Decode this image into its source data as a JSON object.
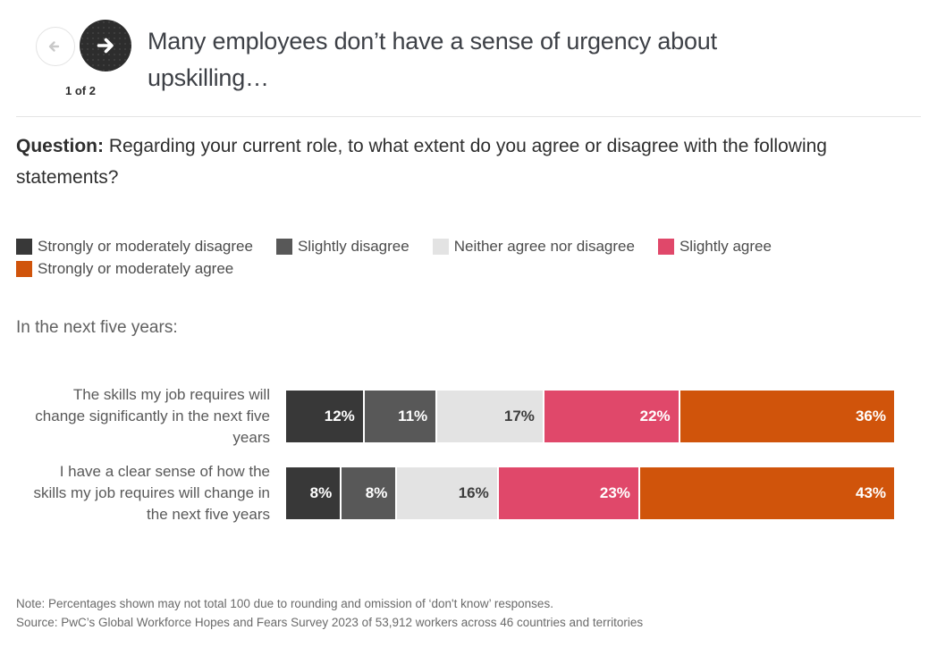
{
  "nav": {
    "page_indicator": "1 of 2"
  },
  "header": {
    "title": "Many employees don’t have a sense of urgency about upskilling…"
  },
  "question": {
    "prefix": "Question:",
    "text": " Regarding your current role, to what extent do you agree or disagree with the following statements?"
  },
  "legend": [
    {
      "label": "Strongly or moderately disagree",
      "color": "#383838"
    },
    {
      "label": "Slightly disagree",
      "color": "#585858"
    },
    {
      "label": "Neither agree nor disagree",
      "color": "#e3e3e3"
    },
    {
      "label": "Slightly agree",
      "color": "#e0486a"
    },
    {
      "label": "Strongly or moderately agree",
      "color": "#d0540b"
    }
  ],
  "chart_data": {
    "type": "bar",
    "orientation": "horizontal",
    "stacked": true,
    "unit": "%",
    "group_label": "In the next five years:",
    "series_names": [
      "Strongly or moderately disagree",
      "Slightly disagree",
      "Neither agree nor disagree",
      "Slightly agree",
      "Strongly or moderately agree"
    ],
    "categories": [
      "The skills my job requires will change significantly in the next five years",
      "I have a clear sense of how the skills my job requires will change in the next five years"
    ],
    "rows": [
      {
        "label_lines": "The skills my job requires will\nchange significantly in the next five\nyears",
        "values": [
          12,
          11,
          17,
          22,
          36
        ]
      },
      {
        "label_lines": "I have a clear sense of how the\nskills my job requires will change in\nthe next five years",
        "values": [
          8,
          8,
          16,
          23,
          43
        ]
      }
    ],
    "xlim": [
      0,
      100
    ],
    "value_labels": "inside-right",
    "legend_position": "top"
  },
  "footer": {
    "note": "Note: Percentages shown may not total 100 due to rounding and omission of ‘don't know’ responses.",
    "source": "Source: PwC’s Global Workforce Hopes and Fears Survey 2023 of 53,912 workers across 46 countries and territories"
  }
}
